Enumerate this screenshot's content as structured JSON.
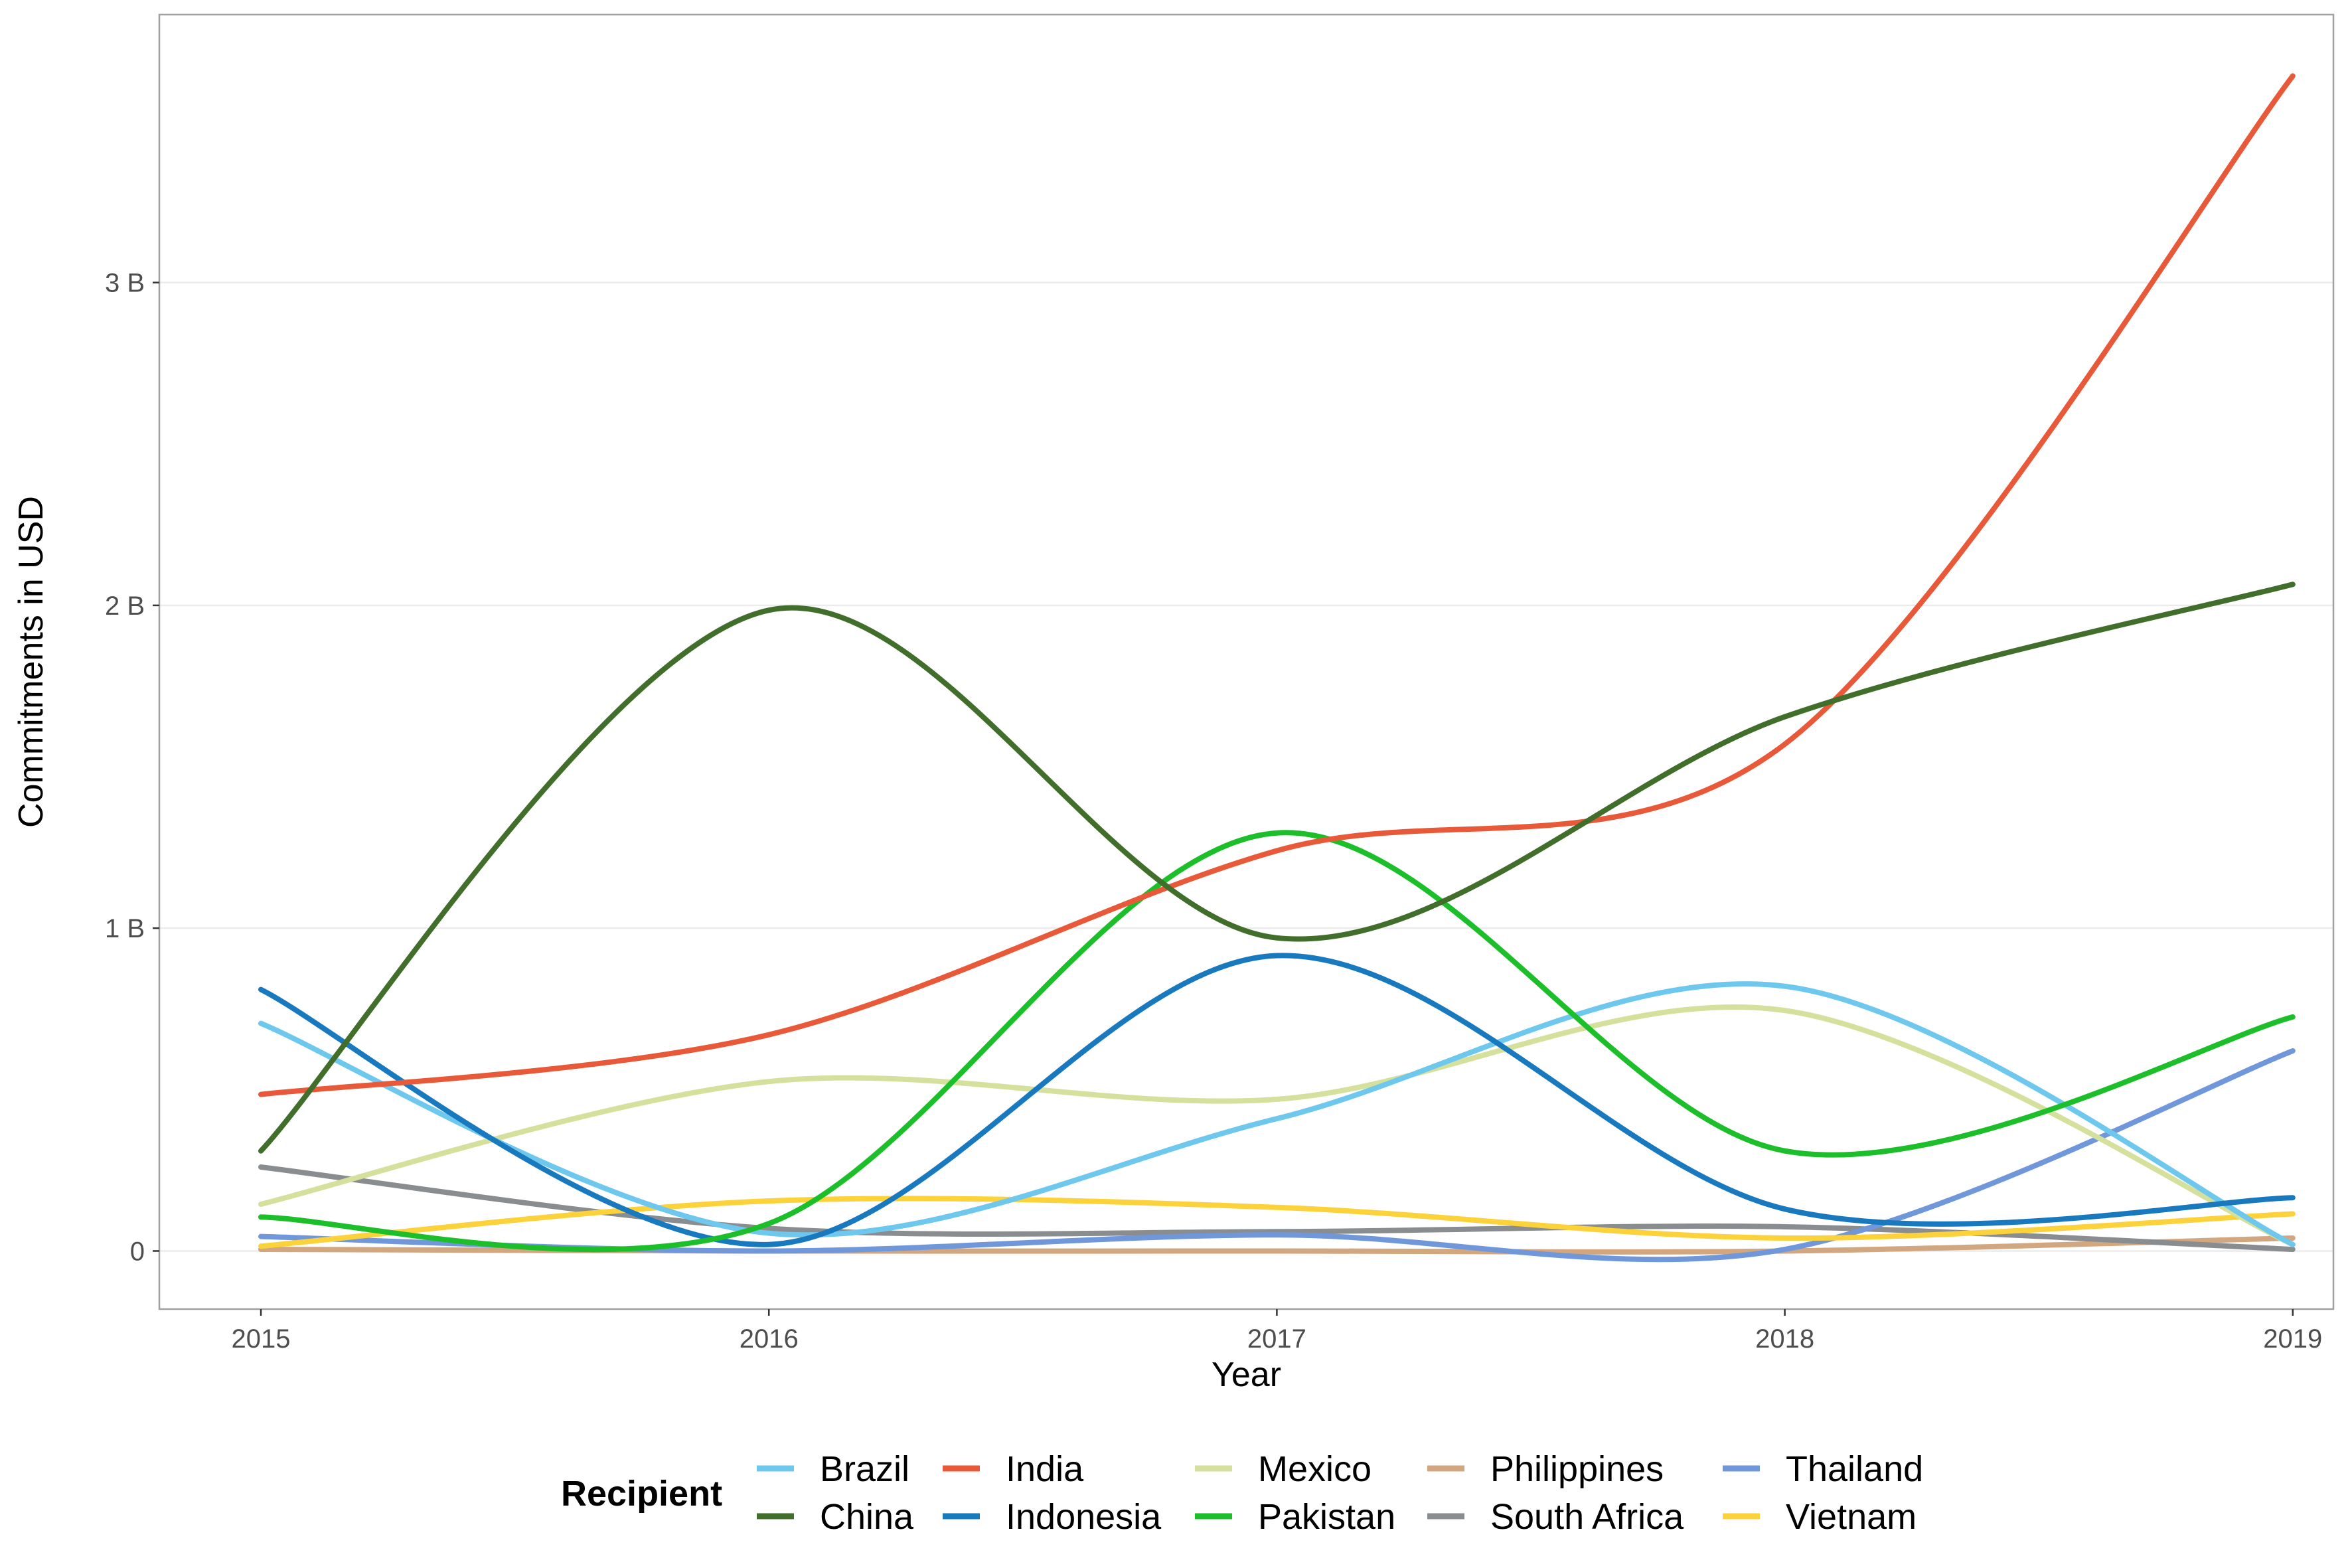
{
  "chart_data": {
    "type": "line",
    "title": "",
    "xlabel": "Year",
    "ylabel": "Commitments in USD",
    "x": [
      2015,
      2016,
      2017,
      2018,
      2019
    ],
    "x_tick_labels": [
      "2015",
      "2016",
      "2017",
      "2018",
      "2019"
    ],
    "xlim": [
      2014.8,
      2019.08
    ],
    "ylim": [
      -180000000,
      3830000000
    ],
    "y_ticks": [
      0,
      1000000000,
      2000000000,
      3000000000
    ],
    "y_tick_labels": [
      "0",
      "1 B",
      "2 B",
      "3 B"
    ],
    "grid": true,
    "legend_position": "bottom",
    "legend_title": "Recipient",
    "series": [
      {
        "name": "Brazil",
        "color": "#6EC8EE",
        "values": [
          705000000,
          55000000,
          410000000,
          820000000,
          20000000
        ]
      },
      {
        "name": "China",
        "color": "#426E2C",
        "values": [
          310000000,
          1985000000,
          970000000,
          1655000000,
          2065000000
        ]
      },
      {
        "name": "India",
        "color": "#E8593A",
        "values": [
          485000000,
          670000000,
          1240000000,
          1570000000,
          3640000000
        ]
      },
      {
        "name": "Indonesia",
        "color": "#1979BF",
        "values": [
          810000000,
          20000000,
          915000000,
          130000000,
          165000000
        ]
      },
      {
        "name": "Mexico",
        "color": "#D4E09C",
        "values": [
          145000000,
          525000000,
          470000000,
          745000000,
          20000000
        ]
      },
      {
        "name": "Pakistan",
        "color": "#1CBF2A",
        "values": [
          105000000,
          85000000,
          1295000000,
          310000000,
          725000000
        ]
      },
      {
        "name": "Philippines",
        "color": "#D2A67E",
        "values": [
          5000000,
          0,
          0,
          0,
          40000000
        ]
      },
      {
        "name": "South Africa",
        "color": "#8A8D90",
        "values": [
          260000000,
          70000000,
          60000000,
          75000000,
          5000000
        ]
      },
      {
        "name": "Thailand",
        "color": "#7097DA",
        "values": [
          45000000,
          0,
          50000000,
          5000000,
          620000000
        ]
      },
      {
        "name": "Vietnam",
        "color": "#FCD23A",
        "values": [
          15000000,
          155000000,
          135000000,
          40000000,
          115000000
        ]
      }
    ]
  }
}
